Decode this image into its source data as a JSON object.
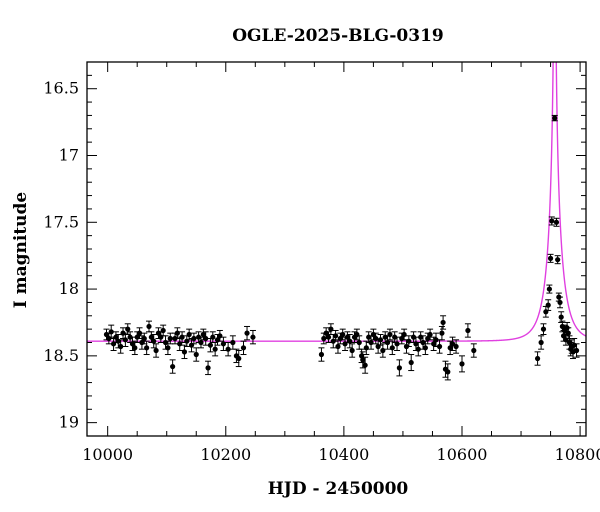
{
  "chart_data": {
    "type": "scatter",
    "title": "OGLE-2025-BLG-0319",
    "xlabel": "HJD - 2450000",
    "ylabel": "I magnitude",
    "xlim": [
      9965,
      10810
    ],
    "ylim": [
      16.3,
      19.1
    ],
    "y_inverted": true,
    "grid": false,
    "x_ticks": [
      10000,
      10200,
      10400,
      10600,
      10800
    ],
    "y_ticks": [
      16.5,
      17,
      17.5,
      18,
      18.5,
      19
    ],
    "y_tick_labels": [
      "16.5",
      "17",
      "17.5",
      "18",
      "18.5",
      "19"
    ],
    "colors": {
      "points": "#000000",
      "model": "#e040e0",
      "axes": "#000000"
    },
    "model": {
      "name": "microlensing model",
      "baseline": 18.39,
      "t0": 10757,
      "u0": 0.01,
      "tE": 25,
      "note_blend_fraction": 0.3
    },
    "series": [
      {
        "values": [
          [
            9998,
            18.34,
            0.04
          ],
          [
            10002,
            18.37,
            0.04
          ],
          [
            10006,
            18.32,
            0.05
          ],
          [
            10010,
            18.41,
            0.05
          ],
          [
            10014,
            18.36,
            0.04
          ],
          [
            10018,
            18.39,
            0.05
          ],
          [
            10022,
            18.43,
            0.05
          ],
          [
            10026,
            18.33,
            0.04
          ],
          [
            10030,
            18.38,
            0.05
          ],
          [
            10034,
            18.3,
            0.04
          ],
          [
            10038,
            18.36,
            0.04
          ],
          [
            10042,
            18.41,
            0.05
          ],
          [
            10046,
            18.44,
            0.05
          ],
          [
            10050,
            18.36,
            0.04
          ],
          [
            10054,
            18.33,
            0.04
          ],
          [
            10058,
            18.4,
            0.05
          ],
          [
            10062,
            18.37,
            0.04
          ],
          [
            10066,
            18.44,
            0.05
          ],
          [
            10070,
            18.28,
            0.04
          ],
          [
            10074,
            18.36,
            0.04
          ],
          [
            10078,
            18.39,
            0.05
          ],
          [
            10082,
            18.46,
            0.05
          ],
          [
            10086,
            18.33,
            0.04
          ],
          [
            10090,
            18.36,
            0.04
          ],
          [
            10094,
            18.31,
            0.04
          ],
          [
            10098,
            18.4,
            0.05
          ],
          [
            10102,
            18.44,
            0.05
          ],
          [
            10106,
            18.37,
            0.04
          ],
          [
            10110,
            18.58,
            0.05
          ],
          [
            10114,
            18.37,
            0.04
          ],
          [
            10118,
            18.33,
            0.04
          ],
          [
            10122,
            18.41,
            0.05
          ],
          [
            10126,
            18.36,
            0.04
          ],
          [
            10130,
            18.47,
            0.05
          ],
          [
            10134,
            18.39,
            0.04
          ],
          [
            10138,
            18.34,
            0.04
          ],
          [
            10142,
            18.42,
            0.05
          ],
          [
            10146,
            18.37,
            0.04
          ],
          [
            10150,
            18.49,
            0.05
          ],
          [
            10154,
            18.36,
            0.04
          ],
          [
            10158,
            18.4,
            0.04
          ],
          [
            10162,
            18.34,
            0.04
          ],
          [
            10166,
            18.37,
            0.05
          ],
          [
            10170,
            18.59,
            0.05
          ],
          [
            10174,
            18.42,
            0.05
          ],
          [
            10178,
            18.36,
            0.04
          ],
          [
            10182,
            18.45,
            0.05
          ],
          [
            10186,
            18.38,
            0.04
          ],
          [
            10190,
            18.35,
            0.04
          ],
          [
            10196,
            18.41,
            0.05
          ],
          [
            10204,
            18.45,
            0.05
          ],
          [
            10212,
            18.4,
            0.05
          ],
          [
            10218,
            18.5,
            0.05
          ],
          [
            10222,
            18.52,
            0.06
          ],
          [
            10230,
            18.44,
            0.05
          ],
          [
            10236,
            18.33,
            0.05
          ],
          [
            10246,
            18.36,
            0.05
          ],
          [
            10362,
            18.49,
            0.05
          ],
          [
            10366,
            18.37,
            0.04
          ],
          [
            10370,
            18.33,
            0.04
          ],
          [
            10374,
            18.36,
            0.04
          ],
          [
            10378,
            18.3,
            0.04
          ],
          [
            10382,
            18.39,
            0.05
          ],
          [
            10386,
            18.35,
            0.04
          ],
          [
            10390,
            18.43,
            0.05
          ],
          [
            10394,
            18.37,
            0.04
          ],
          [
            10398,
            18.34,
            0.04
          ],
          [
            10402,
            18.41,
            0.05
          ],
          [
            10406,
            18.36,
            0.04
          ],
          [
            10410,
            18.39,
            0.05
          ],
          [
            10414,
            18.46,
            0.05
          ],
          [
            10418,
            18.36,
            0.04
          ],
          [
            10422,
            18.34,
            0.04
          ],
          [
            10426,
            18.4,
            0.05
          ],
          [
            10430,
            18.5,
            0.05
          ],
          [
            10432,
            18.53,
            0.06
          ],
          [
            10436,
            18.57,
            0.06
          ],
          [
            10438,
            18.44,
            0.05
          ],
          [
            10442,
            18.36,
            0.04
          ],
          [
            10446,
            18.4,
            0.05
          ],
          [
            10450,
            18.34,
            0.04
          ],
          [
            10454,
            18.37,
            0.04
          ],
          [
            10458,
            18.43,
            0.05
          ],
          [
            10462,
            18.38,
            0.04
          ],
          [
            10466,
            18.46,
            0.05
          ],
          [
            10470,
            18.36,
            0.04
          ],
          [
            10474,
            18.4,
            0.05
          ],
          [
            10478,
            18.34,
            0.04
          ],
          [
            10482,
            18.44,
            0.05
          ],
          [
            10486,
            18.36,
            0.04
          ],
          [
            10490,
            18.41,
            0.05
          ],
          [
            10494,
            18.59,
            0.06
          ],
          [
            10498,
            18.37,
            0.04
          ],
          [
            10502,
            18.34,
            0.04
          ],
          [
            10506,
            18.43,
            0.05
          ],
          [
            10510,
            18.39,
            0.04
          ],
          [
            10514,
            18.55,
            0.06
          ],
          [
            10518,
            18.36,
            0.04
          ],
          [
            10522,
            18.41,
            0.05
          ],
          [
            10526,
            18.45,
            0.05
          ],
          [
            10530,
            18.36,
            0.04
          ],
          [
            10534,
            18.4,
            0.05
          ],
          [
            10538,
            18.44,
            0.05
          ],
          [
            10542,
            18.37,
            0.04
          ],
          [
            10546,
            18.34,
            0.04
          ],
          [
            10552,
            18.41,
            0.05
          ],
          [
            10556,
            18.38,
            0.05
          ],
          [
            10562,
            18.43,
            0.05
          ],
          [
            10566,
            18.33,
            0.05
          ],
          [
            10568,
            18.25,
            0.05
          ],
          [
            10572,
            18.6,
            0.06
          ],
          [
            10576,
            18.62,
            0.06
          ],
          [
            10580,
            18.44,
            0.05
          ],
          [
            10584,
            18.41,
            0.05
          ],
          [
            10590,
            18.43,
            0.05
          ],
          [
            10600,
            18.56,
            0.06
          ],
          [
            10610,
            18.31,
            0.05
          ],
          [
            10620,
            18.46,
            0.05
          ],
          [
            10728,
            18.52,
            0.05
          ],
          [
            10734,
            18.4,
            0.05
          ],
          [
            10738,
            18.3,
            0.04
          ],
          [
            10742,
            18.17,
            0.04
          ],
          [
            10746,
            18.12,
            0.04
          ],
          [
            10748,
            18.0,
            0.03
          ],
          [
            10750,
            17.77,
            0.03
          ],
          [
            10752,
            17.49,
            0.03
          ],
          [
            10757,
            16.72,
            0.02
          ],
          [
            10760,
            17.5,
            0.03
          ],
          [
            10762,
            17.78,
            0.03
          ],
          [
            10764,
            18.06,
            0.03
          ],
          [
            10766,
            18.1,
            0.04
          ],
          [
            10768,
            18.21,
            0.04
          ],
          [
            10770,
            18.28,
            0.04
          ],
          [
            10772,
            18.35,
            0.04
          ],
          [
            10774,
            18.31,
            0.04
          ],
          [
            10776,
            18.38,
            0.04
          ],
          [
            10778,
            18.29,
            0.04
          ],
          [
            10780,
            18.33,
            0.04
          ],
          [
            10782,
            18.4,
            0.05
          ],
          [
            10784,
            18.45,
            0.05
          ],
          [
            10786,
            18.43,
            0.05
          ],
          [
            10788,
            18.47,
            0.05
          ],
          [
            10790,
            18.42,
            0.05
          ],
          [
            10794,
            18.46,
            0.05
          ]
        ]
      }
    ]
  }
}
